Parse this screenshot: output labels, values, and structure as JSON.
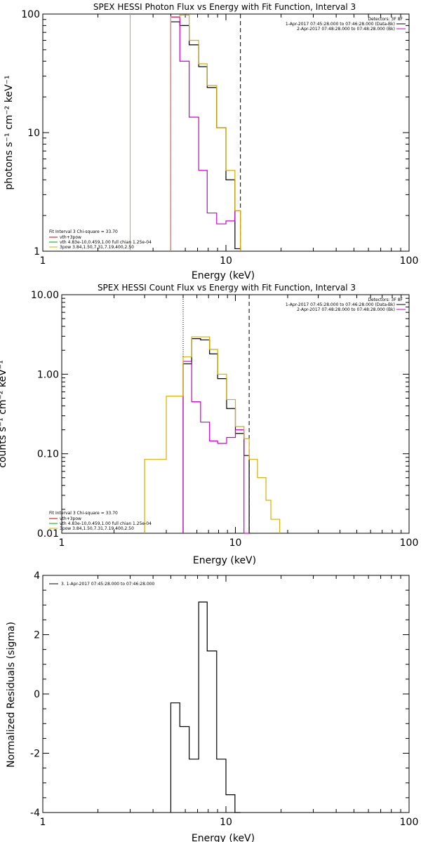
{
  "chart_data": [
    {
      "type": "line",
      "title": "SPEX HESSI Photon Flux vs Energy with Fit Function, Interval 3",
      "xlabel": "Energy (keV)",
      "ylabel": "photons s⁻¹ cm⁻² keV⁻¹",
      "xscale": "log",
      "yscale": "log",
      "xlim": [
        1,
        100
      ],
      "ylim": [
        1,
        100
      ],
      "xticks": [
        "1",
        "10",
        "100"
      ],
      "yticks": [
        "1",
        "10",
        "100"
      ],
      "vlines": [
        {
          "x": 3.0,
          "style": "solid",
          "color": "#d4b000"
        },
        {
          "x": 5.0,
          "style": "dotted",
          "color": "#000000"
        },
        {
          "x": 12.0,
          "style": "dashed",
          "color": "#000000"
        }
      ],
      "legend_top_right": {
        "header": "Detectors: 3F 8F",
        "entries": [
          {
            "text": "1-Apr-2017 07:45:28.000 to 07:46:28.000 (Data-Bk)",
            "color": "#000000"
          },
          {
            "text": "2-Apr-2017 07:48:28.000 to 07:48:28.000 (Bk)",
            "color": "#cc00cc"
          }
        ]
      },
      "legend_bottom_left": {
        "header": "Fit Interval 3   Chi-square = 33.70",
        "entries": [
          {
            "text": "vth+3pow",
            "color": "#cc0000"
          },
          {
            "text": "vth 4.83e-10,0.459,1.00  full chian 1.25e-04",
            "color": "#00aa00"
          },
          {
            "text": "3pow 3.84,1.50,7.31,7.19,400,2.50",
            "color": "#d4b000"
          }
        ]
      },
      "series": [
        {
          "color": "#000000",
          "edges": [
            5.0,
            5.6,
            6.3,
            7.1,
            7.9,
            8.9,
            10.0,
            11.2,
            12.0
          ],
          "values": [
            86,
            80,
            55,
            36,
            24,
            11,
            4.0,
            1.05
          ]
        },
        {
          "color": "#cc00cc",
          "edges": [
            5.0,
            5.6,
            6.3,
            7.1,
            7.9,
            8.9,
            10.0,
            11.2,
            12.0
          ],
          "values": [
            94,
            40,
            13.5,
            4.8,
            2.1,
            1.7,
            1.8,
            2.2
          ]
        },
        {
          "color": "#d4b000",
          "edges": [
            5.0,
            5.6,
            6.3,
            7.1,
            7.9,
            8.9,
            10.0,
            11.2,
            12.0
          ],
          "values": [
            95,
            98,
            60,
            38,
            25,
            11,
            4.8,
            2.2
          ]
        }
      ]
    },
    {
      "type": "line",
      "title": "SPEX HESSI Count Flux vs Energy with Fit Function, Interval 3",
      "xlabel": "Energy (keV)",
      "ylabel": "counts s⁻¹ cm⁻² keV⁻¹",
      "xscale": "log",
      "yscale": "log",
      "xlim": [
        1,
        100
      ],
      "ylim": [
        0.01,
        10
      ],
      "xticks": [
        "1",
        "10",
        "100"
      ],
      "yticks": [
        "0.01",
        "0.10",
        "1.00",
        "10.00"
      ],
      "vlines": [
        {
          "x": 5.0,
          "style": "dotted",
          "color": "#000000"
        },
        {
          "x": 12.0,
          "style": "dashed",
          "color": "#000000"
        }
      ],
      "legend_top_right": {
        "header": "Detectors: 3F 8F",
        "entries": [
          {
            "text": "1-Apr-2017 07:45:28.000 to 07:46:28.000 (Data-Bk)",
            "color": "#000000"
          },
          {
            "text": "2-Apr-2017 07:48:28.000 to 07:48:28.000 (Bk)",
            "color": "#cc00cc"
          }
        ]
      },
      "legend_bottom_left": {
        "header": "Fit Interval 3   Chi-square = 33.70",
        "entries": [
          {
            "text": "vth+3pow",
            "color": "#cc0000"
          },
          {
            "text": "vth 4.83e-10,0.459,1.00  full chian 1.25e-04",
            "color": "#00aa00"
          },
          {
            "text": "3pow 3.84,1.50,7.31,7.19,400,2.50",
            "color": "#d4b000"
          }
        ]
      },
      "series": [
        {
          "color": "#000000",
          "edges": [
            5.0,
            5.6,
            6.3,
            7.1,
            7.9,
            8.9,
            10.0,
            11.2,
            12.0
          ],
          "values": [
            1.35,
            2.8,
            2.7,
            1.8,
            0.88,
            0.37,
            0.18,
            0.095
          ]
        },
        {
          "color": "#cc00cc",
          "edges": [
            5.0,
            5.6,
            6.3,
            7.1,
            7.9,
            8.9,
            10.0,
            11.2,
            12.0
          ],
          "values": [
            1.45,
            0.45,
            0.25,
            0.145,
            0.135,
            0.16,
            0.2,
            0.01
          ]
        },
        {
          "color": "#d4b000",
          "edges": [
            3.0,
            4.0,
            5.0,
            5.6,
            6.3,
            7.1,
            7.9,
            8.9,
            10.0,
            11.2,
            12.0,
            13.4,
            15.0,
            16.0,
            18.0
          ],
          "values": [
            0.085,
            0.53,
            1.65,
            2.95,
            2.95,
            2.05,
            1.0,
            0.48,
            0.22,
            0.155,
            0.085,
            0.05,
            0.026,
            0.015
          ]
        }
      ]
    },
    {
      "type": "line",
      "title": "",
      "xlabel": "Energy (keV)",
      "ylabel": "Normalized Residuals (sigma)",
      "xscale": "log",
      "yscale": "linear",
      "xlim": [
        1,
        100
      ],
      "ylim": [
        -4,
        4
      ],
      "xticks": [
        "1",
        "10",
        "100"
      ],
      "yticks": [
        "-4",
        "-2",
        "0",
        "2",
        "4"
      ],
      "legend": {
        "entries": [
          {
            "text": "3. 1-Apr-2017 07:45:28.000 to 07:46:28.000",
            "color": "#000000"
          }
        ]
      },
      "series": [
        {
          "color": "#000000",
          "edges": [
            5.0,
            5.6,
            6.3,
            7.1,
            7.9,
            8.9,
            10.0,
            11.2,
            12.0
          ],
          "values": [
            -0.3,
            -1.1,
            -2.2,
            3.1,
            1.45,
            -2.2,
            -3.4,
            -4.0
          ]
        }
      ]
    }
  ]
}
